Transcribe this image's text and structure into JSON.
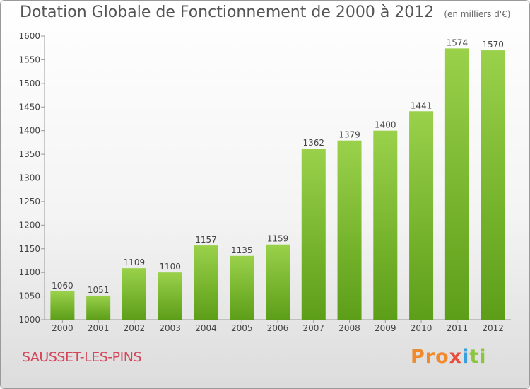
{
  "chart_data": {
    "type": "bar",
    "title": "Dotation Globale de Fonctionnement de 2000 à 2012",
    "subtitle": "(en milliers d'€)",
    "categories": [
      "2000",
      "2001",
      "2002",
      "2003",
      "2004",
      "2005",
      "2006",
      "2007",
      "2008",
      "2009",
      "2010",
      "2011",
      "2012"
    ],
    "values": [
      1060,
      1051,
      1109,
      1100,
      1157,
      1135,
      1159,
      1362,
      1379,
      1400,
      1441,
      1574,
      1570
    ],
    "ylim": [
      1000,
      1600
    ],
    "yticks": [
      1000,
      1050,
      1100,
      1150,
      1200,
      1250,
      1300,
      1350,
      1400,
      1450,
      1500,
      1550,
      1600
    ],
    "grid": false,
    "bar_color_top": "#9ad14b",
    "bar_color_bottom": "#5d9e18"
  },
  "footer": {
    "commune": "SAUSSET-LES-PINS",
    "logo": [
      "Pro",
      "x",
      "i",
      "ti"
    ]
  },
  "colors": {
    "commune_text": "#d4455a",
    "logo_orange": "#f08a2c",
    "logo_blue": "#3aa0dc",
    "logo_red": "#e74c3c",
    "logo_green": "#8cc63f"
  }
}
